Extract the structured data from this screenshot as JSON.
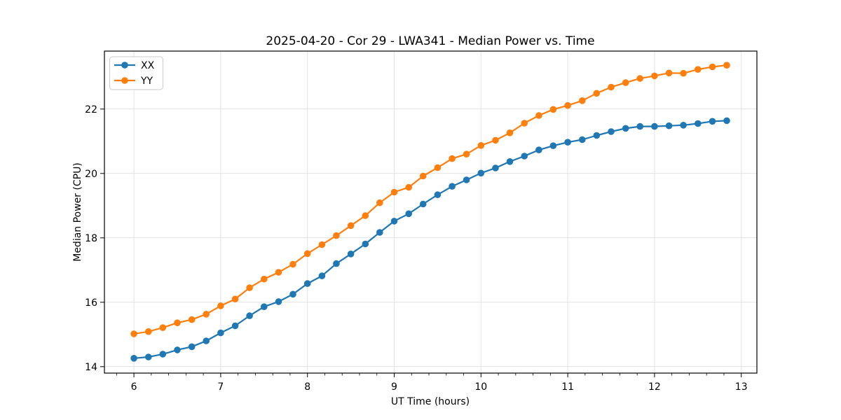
{
  "chart_data": {
    "type": "line",
    "title": "2025-04-20 - Cor 29 - LWA341 - Median Power vs. Time",
    "xlabel": "UT Time (hours)",
    "ylabel": "Median Power (CPU)",
    "xlim": [
      5.66,
      13.18
    ],
    "ylim": [
      13.8,
      23.8
    ],
    "x_ticks": [
      6,
      7,
      8,
      9,
      10,
      11,
      12,
      13
    ],
    "x_minor_tick_step": 0.2,
    "y_ticks": [
      14,
      16,
      18,
      20,
      22
    ],
    "grid": true,
    "legend_position": "upper-left",
    "x": [
      6.0,
      6.167,
      6.333,
      6.5,
      6.667,
      6.833,
      7.0,
      7.167,
      7.333,
      7.5,
      7.667,
      7.833,
      8.0,
      8.167,
      8.333,
      8.5,
      8.667,
      8.833,
      9.0,
      9.167,
      9.333,
      9.5,
      9.667,
      9.833,
      10.0,
      10.167,
      10.333,
      10.5,
      10.667,
      10.833,
      11.0,
      11.167,
      11.333,
      11.5,
      11.667,
      11.833,
      12.0,
      12.167,
      12.333,
      12.5,
      12.667,
      12.833
    ],
    "series": [
      {
        "name": "XX",
        "color": "#1f77b4",
        "values": [
          14.26,
          14.3,
          14.39,
          14.52,
          14.62,
          14.8,
          15.05,
          15.27,
          15.58,
          15.86,
          16.02,
          16.25,
          16.58,
          16.82,
          17.2,
          17.5,
          17.81,
          18.17,
          18.52,
          18.75,
          19.05,
          19.34,
          19.6,
          19.8,
          20.01,
          20.17,
          20.37,
          20.54,
          20.73,
          20.86,
          20.97,
          21.05,
          21.18,
          21.3,
          21.4,
          21.46,
          21.46,
          21.48,
          21.5,
          21.55,
          21.62,
          21.64
        ]
      },
      {
        "name": "YY",
        "color": "#ff7f0e",
        "values": [
          15.02,
          15.09,
          15.21,
          15.36,
          15.46,
          15.63,
          15.89,
          16.1,
          16.45,
          16.72,
          16.93,
          17.18,
          17.51,
          17.79,
          18.07,
          18.38,
          18.69,
          19.09,
          19.42,
          19.57,
          19.92,
          20.18,
          20.46,
          20.6,
          20.87,
          21.03,
          21.26,
          21.56,
          21.8,
          21.99,
          22.11,
          22.26,
          22.49,
          22.68,
          22.82,
          22.95,
          23.03,
          23.12,
          23.11,
          23.23,
          23.31,
          23.36
        ]
      }
    ],
    "style": {
      "grid_color": "#e2e2e2",
      "spine_color": "#000000",
      "background": "#ffffff",
      "marker_radius": 4.8,
      "line_width": 2.2
    }
  }
}
